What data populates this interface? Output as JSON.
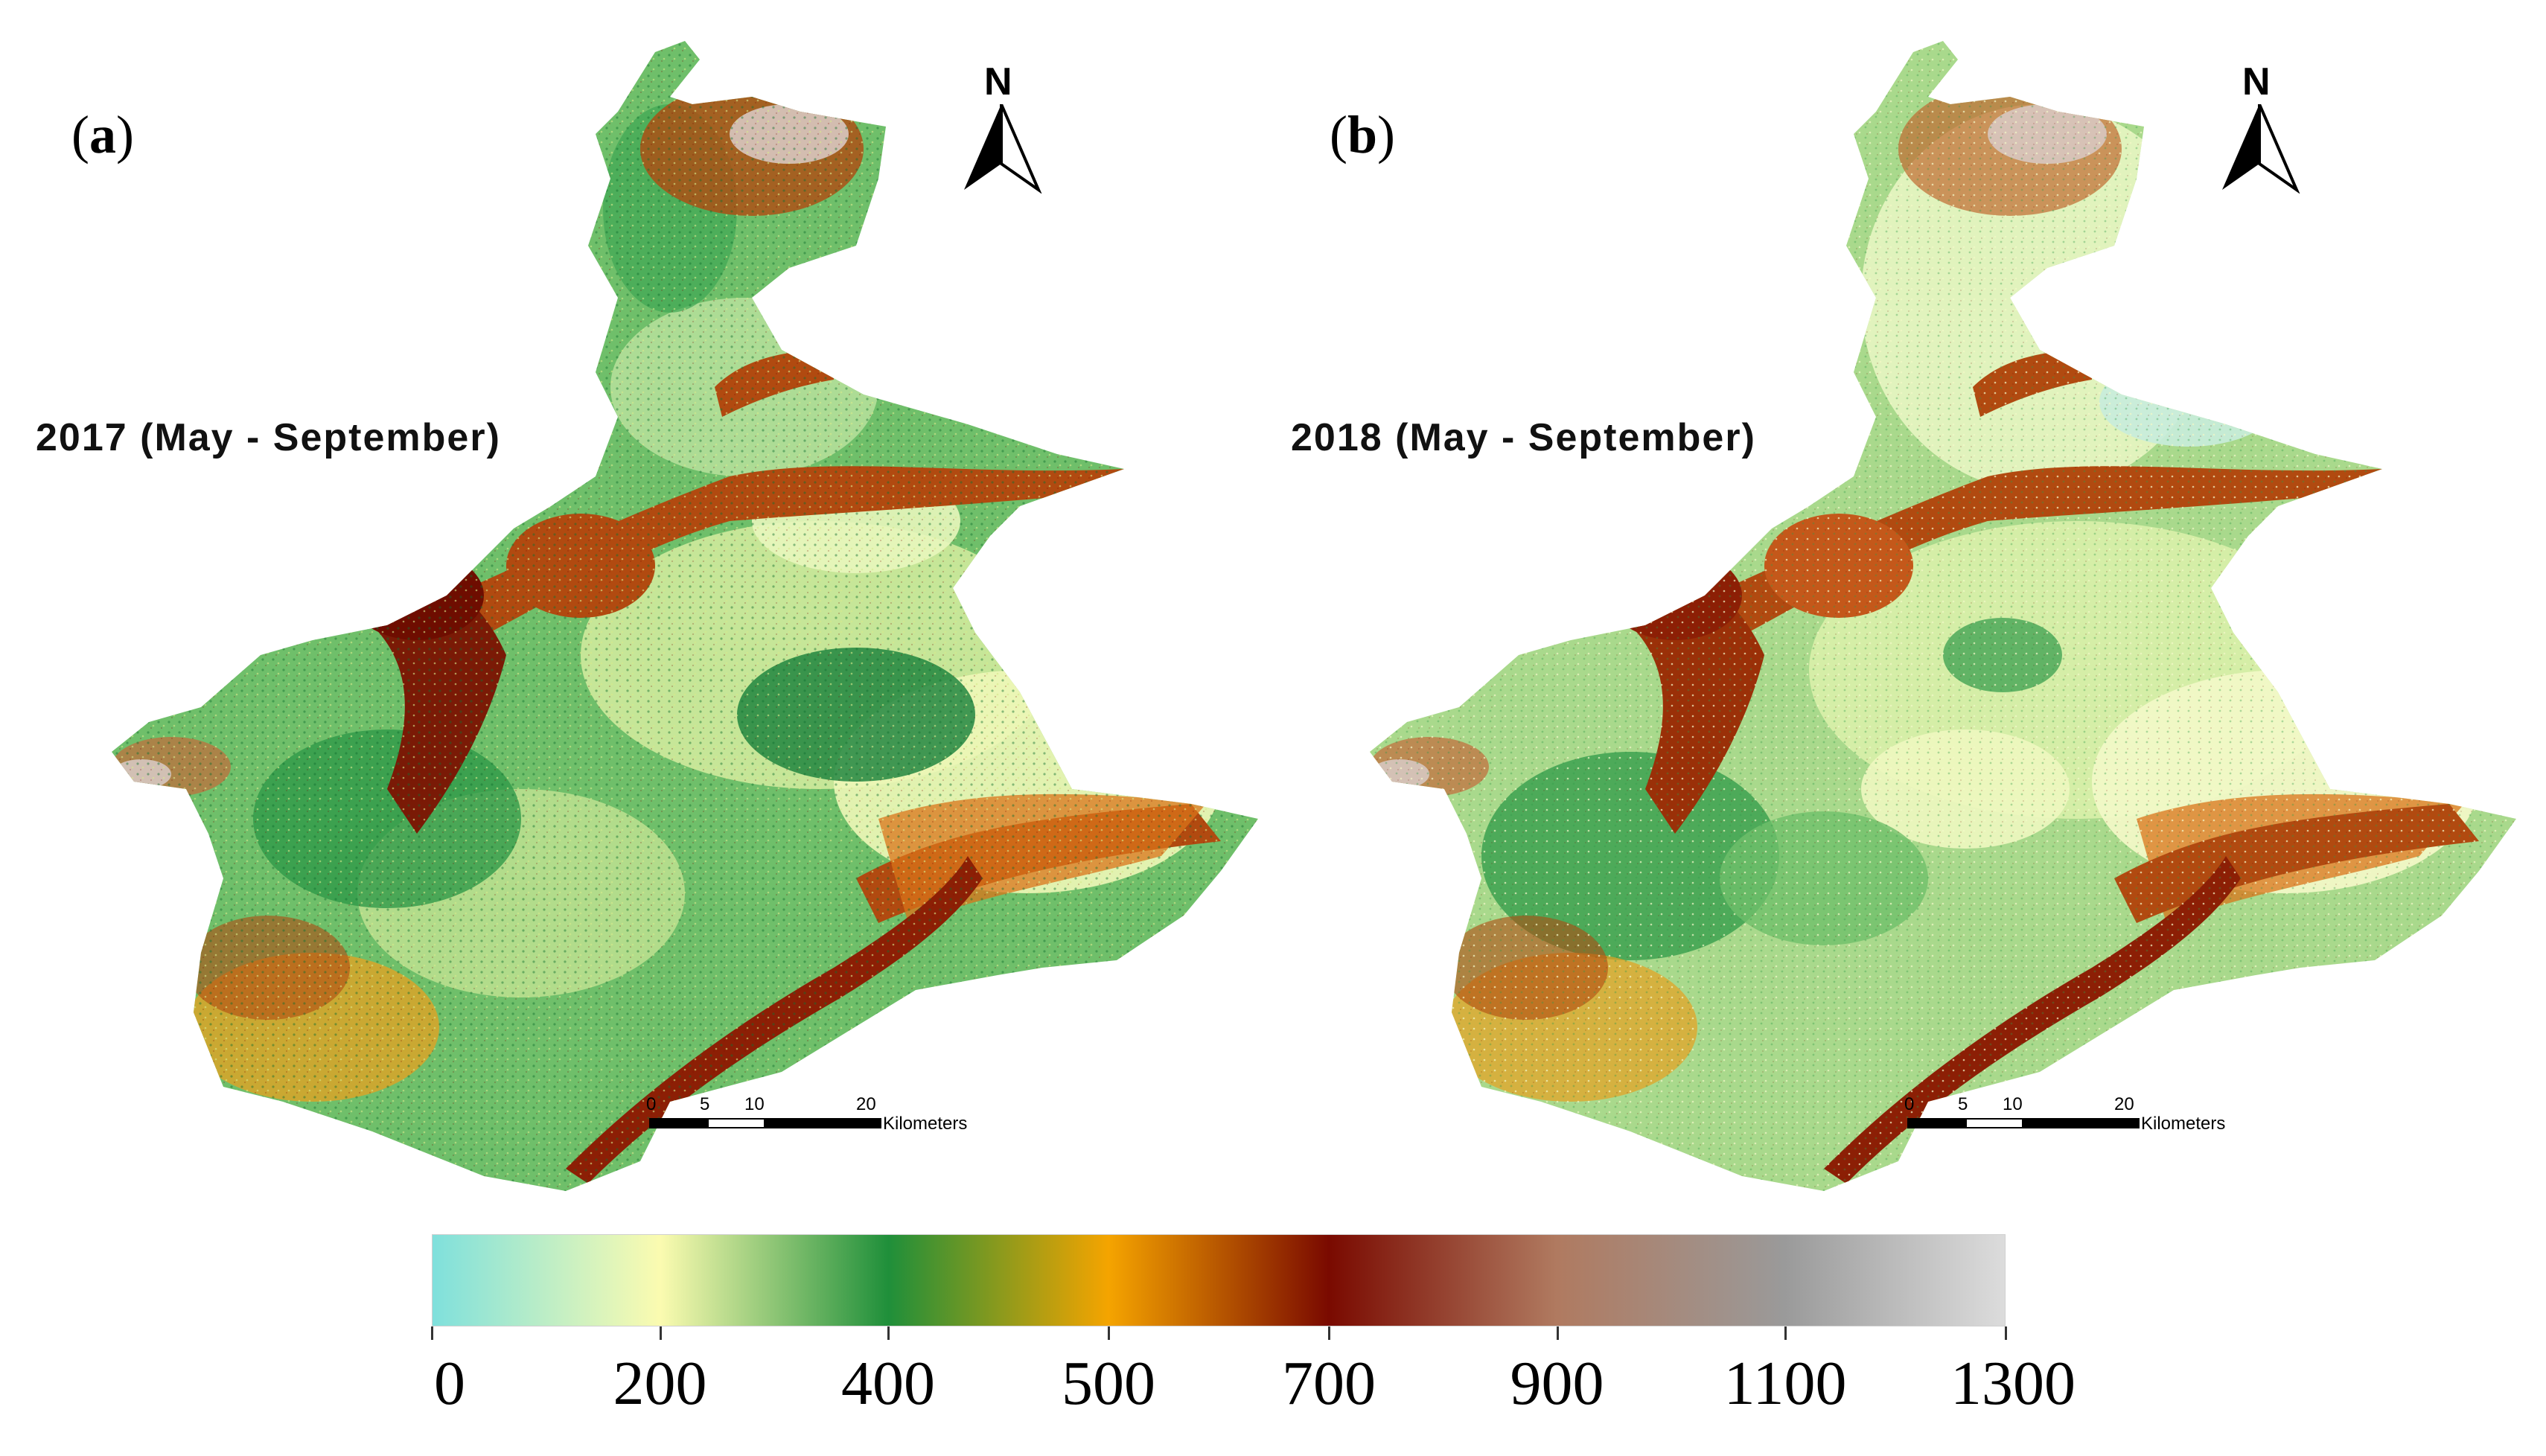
{
  "figure": {
    "panels": [
      {
        "label_letter": "a",
        "period": "2017 (May - September)"
      },
      {
        "label_letter": "b",
        "period": "2018 (May - September)"
      }
    ],
    "north_letter": "N",
    "scale": {
      "ticks": [
        "0",
        "5",
        "10",
        "20"
      ],
      "unit": "Kilometers"
    },
    "legend": {
      "labels": [
        "0",
        "200",
        "400",
        "500",
        "700",
        "900",
        "1100",
        "1300"
      ],
      "colors": [
        "#7fe0dc",
        "#fbfbb0",
        "#1f8f3a",
        "#f5a400",
        "#7a0a00",
        "#b07a60",
        "#9a9a9a",
        "#dcdcdc"
      ]
    },
    "colors": {
      "light": "#eef7b8",
      "pale_green": "#9fd48a",
      "green": "#2f9a48",
      "dark_green": "#15803a",
      "orange": "#e8a020",
      "rust": "#b14a10",
      "dark_red": "#6e0d00",
      "grey": "#bfbfbf"
    }
  }
}
